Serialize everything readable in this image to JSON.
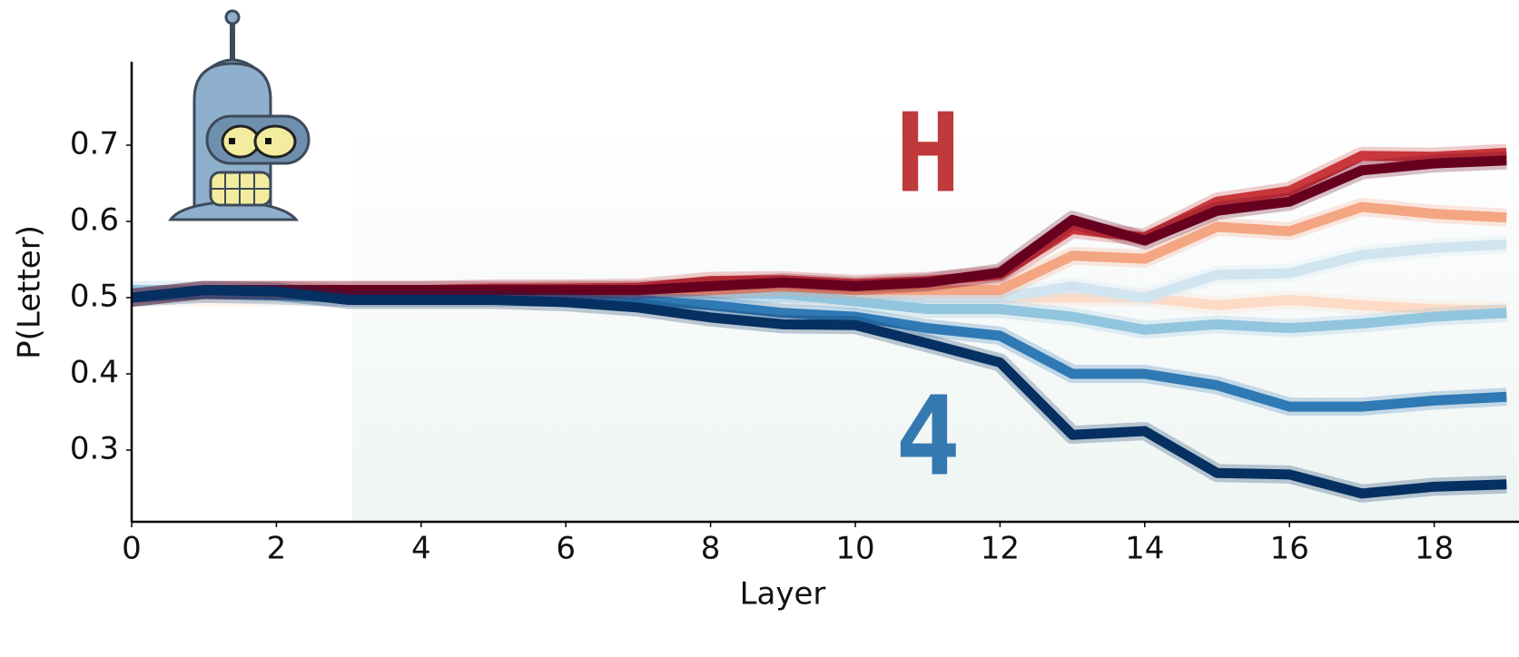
{
  "chart_data": {
    "type": "line",
    "x_label": "Layer",
    "y_label": "P(Letter)",
    "annotations": [
      {
        "text": "H",
        "color": "#c0393b"
      },
      {
        "text": "4",
        "color": "#3579b1"
      }
    ],
    "x": [
      0,
      1,
      2,
      3,
      4,
      5,
      6,
      7,
      8,
      9,
      10,
      11,
      12,
      13,
      14,
      15,
      16,
      17,
      18,
      19
    ],
    "xlim": [
      0,
      19
    ],
    "xticks": [
      0,
      2,
      4,
      6,
      8,
      10,
      12,
      14,
      16,
      18
    ],
    "ylim": [
      0.2,
      0.8
    ],
    "yticks": [
      0.3,
      0.4,
      0.5,
      0.6,
      0.7
    ],
    "grid": false,
    "series": [
      {
        "color": "#fddbc7",
        "values": [
          0.5,
          0.5,
          0.5,
          0.5,
          0.5,
          0.5,
          0.5,
          0.5,
          0.5,
          0.5,
          0.5,
          0.5,
          0.5,
          0.5,
          0.5,
          0.49,
          0.497,
          0.49,
          0.485,
          0.483
        ]
      },
      {
        "color": "#d1e5f0",
        "values": [
          0.5,
          0.505,
          0.505,
          0.505,
          0.505,
          0.505,
          0.505,
          0.505,
          0.5,
          0.5,
          0.5,
          0.5,
          0.5,
          0.515,
          0.5,
          0.53,
          0.532,
          0.556,
          0.565,
          0.57
        ]
      },
      {
        "color": "#92c5de",
        "values": [
          0.51,
          0.51,
          0.51,
          0.505,
          0.505,
          0.505,
          0.505,
          0.505,
          0.505,
          0.505,
          0.495,
          0.485,
          0.485,
          0.475,
          0.458,
          0.465,
          0.46,
          0.466,
          0.475,
          0.48
        ]
      },
      {
        "color": "#f4a582",
        "values": [
          0.5,
          0.51,
          0.51,
          0.505,
          0.505,
          0.505,
          0.51,
          0.51,
          0.51,
          0.515,
          0.51,
          0.51,
          0.51,
          0.555,
          0.551,
          0.593,
          0.587,
          0.619,
          0.61,
          0.605
        ]
      },
      {
        "color": "#2f79b5",
        "values": [
          0.5,
          0.505,
          0.503,
          0.5,
          0.5,
          0.5,
          0.5,
          0.497,
          0.49,
          0.48,
          0.475,
          0.46,
          0.45,
          0.4,
          0.4,
          0.385,
          0.357,
          0.357,
          0.365,
          0.37
        ]
      },
      {
        "color": "#c8373b",
        "values": [
          0.5,
          0.51,
          0.51,
          0.51,
          0.51,
          0.512,
          0.512,
          0.513,
          0.522,
          0.523,
          0.518,
          0.522,
          0.53,
          0.59,
          0.579,
          0.626,
          0.64,
          0.686,
          0.685,
          0.69
        ]
      },
      {
        "color": "#67001f",
        "values": [
          0.5,
          0.51,
          0.51,
          0.51,
          0.51,
          0.51,
          0.51,
          0.51,
          0.515,
          0.52,
          0.515,
          0.52,
          0.533,
          0.602,
          0.575,
          0.614,
          0.626,
          0.667,
          0.676,
          0.68
        ]
      },
      {
        "color": "#053061",
        "values": [
          0.5,
          0.51,
          0.508,
          0.497,
          0.497,
          0.497,
          0.494,
          0.487,
          0.474,
          0.465,
          0.464,
          0.44,
          0.415,
          0.32,
          0.325,
          0.27,
          0.268,
          0.243,
          0.252,
          0.255
        ]
      }
    ]
  }
}
